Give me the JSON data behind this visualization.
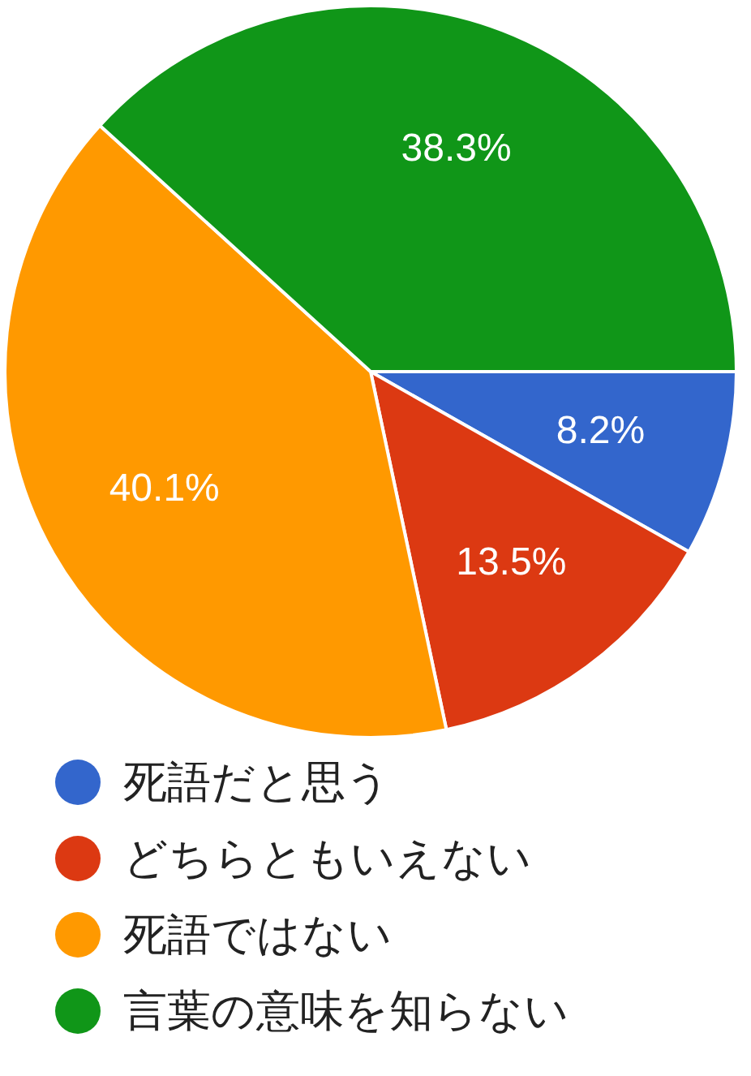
{
  "chart_data": {
    "type": "pie",
    "categories": [
      "死語だと思う",
      "どちらともいえない",
      "死語ではない",
      "言葉の意味を知らない"
    ],
    "values": [
      8.2,
      13.5,
      40.1,
      38.3
    ],
    "colors": [
      "#3366cc",
      "#dc3912",
      "#ff9900",
      "#109618"
    ],
    "value_labels": [
      "8.2%",
      "13.5%",
      "40.1%",
      "38.3%"
    ],
    "legend": "bottom"
  }
}
